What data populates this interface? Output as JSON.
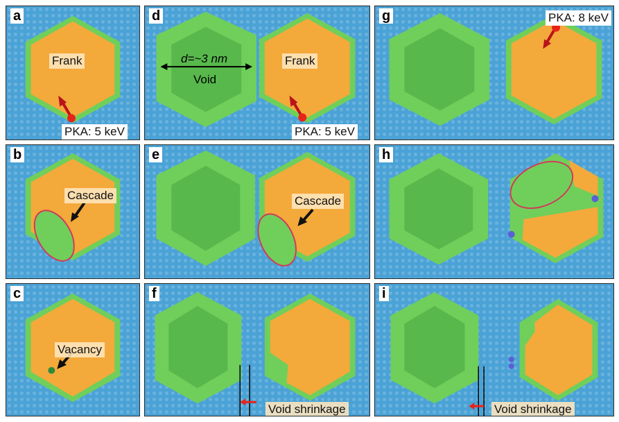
{
  "figure": {
    "panels": [
      {
        "letter": "a",
        "labels": {
          "main": "Frank",
          "pka": "PKA: 5 keV"
        }
      },
      {
        "letter": "b",
        "labels": {
          "cascade": "Cascade"
        }
      },
      {
        "letter": "c",
        "labels": {
          "vacancy": "Vacancy"
        }
      },
      {
        "letter": "d",
        "labels": {
          "dimension": "d=~3 nm",
          "void": "Void",
          "main": "Frank",
          "pka": "PKA: 5 keV"
        }
      },
      {
        "letter": "e",
        "labels": {
          "cascade": "Cascade"
        }
      },
      {
        "letter": "f",
        "labels": {
          "shrink": "Void shrinkage"
        }
      },
      {
        "letter": "g",
        "labels": {
          "pka": "PKA: 8 keV"
        }
      },
      {
        "letter": "h",
        "labels": {}
      },
      {
        "letter": "i",
        "labels": {
          "shrink": "Void shrinkage"
        }
      }
    ],
    "colors": {
      "matrix": "#4aa2d6",
      "frank_loop": "#f4a93b",
      "void_atoms": "#6fcf5a",
      "pka": "#e8231a",
      "arrow": "#b8141a",
      "cascade_ellipse": "#d23a5a",
      "interstitial": "#5b5fd6"
    }
  }
}
